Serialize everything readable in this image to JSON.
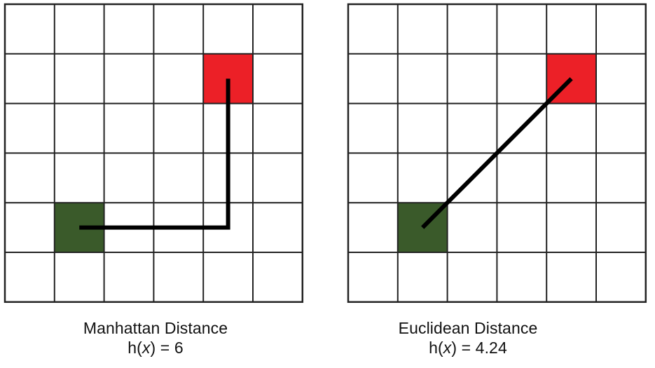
{
  "panels": [
    {
      "id": "manhattan",
      "grid_rows": 6,
      "grid_cols": 6,
      "start_cell": {
        "col": 1,
        "row": 4
      },
      "goal_cell": {
        "col": 4,
        "row": 1
      },
      "path": "manhattan",
      "caption_title": "Manhattan Distance",
      "formula_prefix": "h(",
      "formula_var": "x",
      "formula_suffix": ") = 6",
      "distance": 6
    },
    {
      "id": "euclidean",
      "grid_rows": 6,
      "grid_cols": 6,
      "start_cell": {
        "col": 1,
        "row": 4
      },
      "goal_cell": {
        "col": 4,
        "row": 1
      },
      "path": "euclidean",
      "caption_title": "Euclidean Distance",
      "formula_prefix": "h(",
      "formula_var": "x",
      "formula_suffix": ") = 4.24",
      "distance": 4.24
    }
  ],
  "colors": {
    "start": "#3a5a2a",
    "goal": "#ec2027",
    "grid_line": "#222222",
    "path": "#000000",
    "background": "#ffffff"
  }
}
